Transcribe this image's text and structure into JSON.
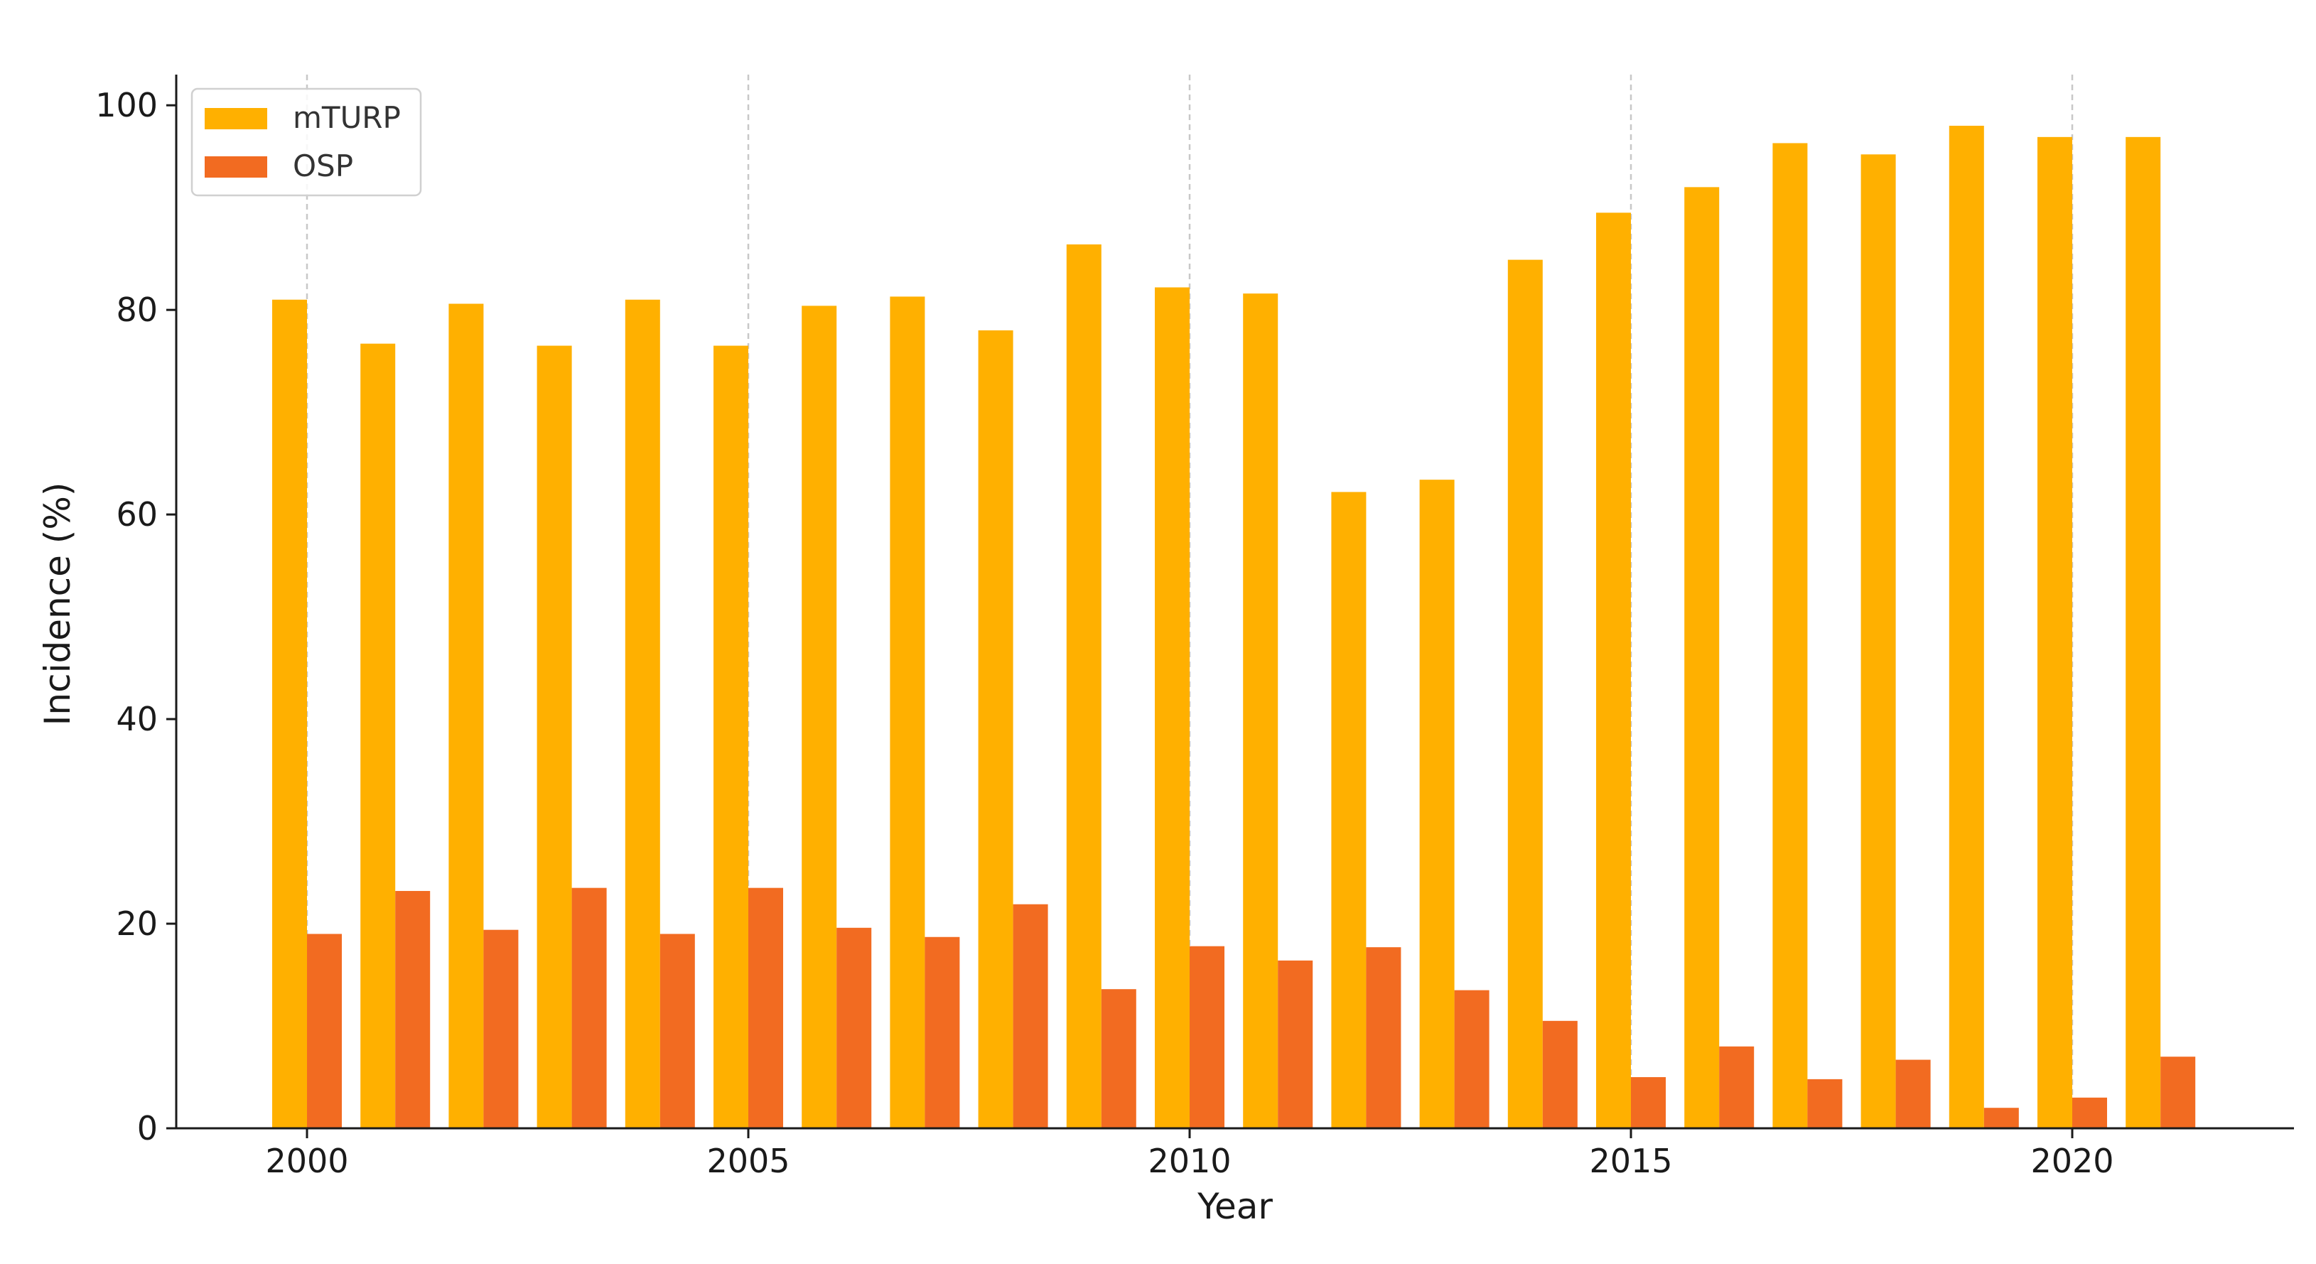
{
  "chart_data": {
    "type": "bar",
    "xlabel": "Year",
    "ylabel": "Incidence (%)",
    "categories": [
      2000,
      2001,
      2002,
      2003,
      2004,
      2005,
      2006,
      2007,
      2008,
      2009,
      2010,
      2011,
      2012,
      2013,
      2014,
      2015,
      2016,
      2017,
      2018,
      2019,
      2020,
      2021
    ],
    "series": [
      {
        "name": "mTURP",
        "color": "#FFB000",
        "values": [
          81.0,
          76.7,
          80.6,
          76.5,
          81.0,
          76.5,
          80.4,
          81.3,
          78.0,
          86.4,
          82.2,
          81.6,
          62.2,
          63.4,
          84.9,
          89.5,
          92.0,
          96.3,
          95.2,
          98.0,
          96.9,
          96.9
        ]
      },
      {
        "name": "OSP",
        "color": "#F26B21",
        "values": [
          19.0,
          23.2,
          19.4,
          23.5,
          19.0,
          23.5,
          19.6,
          18.7,
          21.9,
          13.6,
          17.8,
          16.4,
          17.7,
          13.5,
          10.5,
          5.0,
          8.0,
          4.8,
          6.7,
          2.0,
          3.0,
          7.0
        ]
      }
    ],
    "ylim": [
      0,
      103
    ],
    "yticks": [
      0,
      20,
      40,
      60,
      80,
      100
    ],
    "xticks": [
      2000,
      2005,
      2010,
      2015,
      2020
    ],
    "grid": "x-major-dashed",
    "legend": "top-left"
  }
}
